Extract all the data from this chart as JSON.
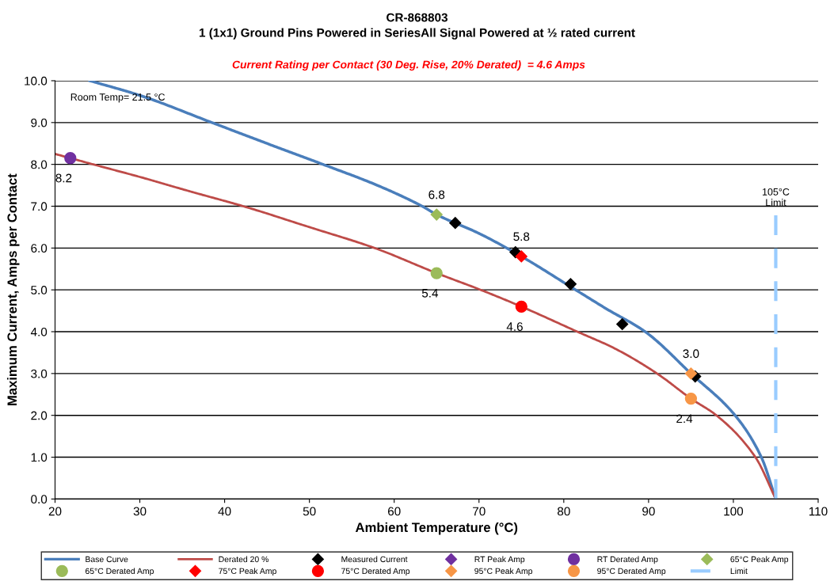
{
  "chart_data": {
    "type": "line",
    "title": "CR-868803",
    "subtitle": "1 (1x1) Ground Pins Powered in SeriesAll Signal Powered at ½ rated current",
    "xlabel": "Ambient Temperature (°C)",
    "ylabel": "Maximum Current, Amps per Contact",
    "annotations": [
      "Current Rating per Contact (30 Deg. Rise, 20% Derated)  = 4.6 Amps",
      "Room Temp= 21.5 °C",
      {
        "text": "105°C\nLimit",
        "x": 105,
        "y": 6.8
      }
    ],
    "xlim": [
      20,
      110
    ],
    "xticks": [
      20,
      30,
      40,
      50,
      60,
      70,
      80,
      90,
      100,
      110
    ],
    "ylim": [
      0,
      10
    ],
    "yticks": [
      {
        "value": 0,
        "label": "0.0"
      },
      {
        "value": 1,
        "label": "1.0"
      },
      {
        "value": 2,
        "label": "2.0"
      },
      {
        "value": 3,
        "label": "3.0"
      },
      {
        "value": 4,
        "label": "4.0"
      },
      {
        "value": 5,
        "label": "5.0"
      },
      {
        "value": 6,
        "label": "6.0"
      },
      {
        "value": 7,
        "label": "7.0"
      },
      {
        "value": 8,
        "label": "8.0"
      },
      {
        "value": 9,
        "label": "9.0"
      },
      {
        "value": 10,
        "label": "10.0"
      }
    ],
    "grid": "y",
    "legend": "bottom",
    "series": [
      {
        "name": "Base Curve",
        "color": "#4a7ebb",
        "x": [
          24.1,
          30,
          38.5,
          45,
          51.6,
          58,
          63.3,
          65,
          70,
          75,
          81.4,
          85,
          89.6,
          95,
          100.2,
          103.3,
          105
        ],
        "values": [
          10,
          9.65,
          9,
          8.5,
          8,
          7.5,
          7,
          6.8,
          6.35,
          5.8,
          5,
          4.55,
          4,
          3,
          2,
          1,
          0
        ]
      },
      {
        "name": "Derated 20 %",
        "color": "#be4b48",
        "x": [
          20,
          24.5,
          30,
          36,
          42.2,
          50,
          57.7,
          65,
          70.2,
          75,
          81.6,
          86,
          91,
          95,
          98,
          102.6,
          105
        ],
        "values": [
          8.25,
          8,
          7.7,
          7.35,
          7,
          6.5,
          6,
          5.4,
          5,
          4.6,
          4,
          3.6,
          3,
          2.4,
          2,
          1,
          0
        ]
      },
      {
        "name": "Measured Current",
        "type": "scatter",
        "marker": "diamond",
        "color": "#000000",
        "x": [
          67.2,
          74.3,
          80.8,
          86.9,
          95.5
        ],
        "values": [
          6.6,
          5.9,
          5.14,
          4.18,
          2.93
        ]
      },
      {
        "name": "RT Peak Amp",
        "type": "scatter",
        "marker": "diamond",
        "color": "#7030a0"
      },
      {
        "name": "RT Derated Amp",
        "type": "scatter",
        "marker": "circle",
        "color": "#7030a0",
        "x": [
          21.8
        ],
        "values": [
          8.15
        ],
        "value_labels": [
          "8.2"
        ]
      },
      {
        "name": "65°C Peak Amp",
        "type": "scatter",
        "marker": "diamond",
        "color": "#9bbb59",
        "x": [
          65
        ],
        "values": [
          6.8
        ],
        "value_labels": [
          "6.8"
        ]
      },
      {
        "name": "65°C Derated Amp",
        "type": "scatter",
        "marker": "circle",
        "color": "#9bbb59",
        "x": [
          65
        ],
        "values": [
          5.4
        ],
        "value_labels": [
          "5.4"
        ]
      },
      {
        "name": "75°C Peak Amp",
        "type": "scatter",
        "marker": "diamond",
        "color": "#ff0000",
        "x": [
          75
        ],
        "values": [
          5.8
        ],
        "value_labels": [
          "5.8"
        ]
      },
      {
        "name": "75°C Derated Amp",
        "type": "scatter",
        "marker": "circle",
        "color": "#ff0000",
        "x": [
          75
        ],
        "values": [
          4.6
        ],
        "value_labels": [
          "4.6"
        ]
      },
      {
        "name": "95°C Peak Amp",
        "type": "scatter",
        "marker": "diamond",
        "color": "#f79646",
        "x": [
          95
        ],
        "values": [
          3.0
        ],
        "value_labels": [
          "3.0"
        ]
      },
      {
        "name": "95°C Derated Amp",
        "type": "scatter",
        "marker": "circle",
        "color": "#f79646",
        "x": [
          95
        ],
        "values": [
          2.4
        ],
        "value_labels": [
          "2.4"
        ]
      },
      {
        "name": "Limit",
        "line_style": "dashed",
        "color": "#99ccff",
        "x": [
          105,
          105
        ],
        "values": [
          0,
          6.8
        ]
      }
    ]
  }
}
